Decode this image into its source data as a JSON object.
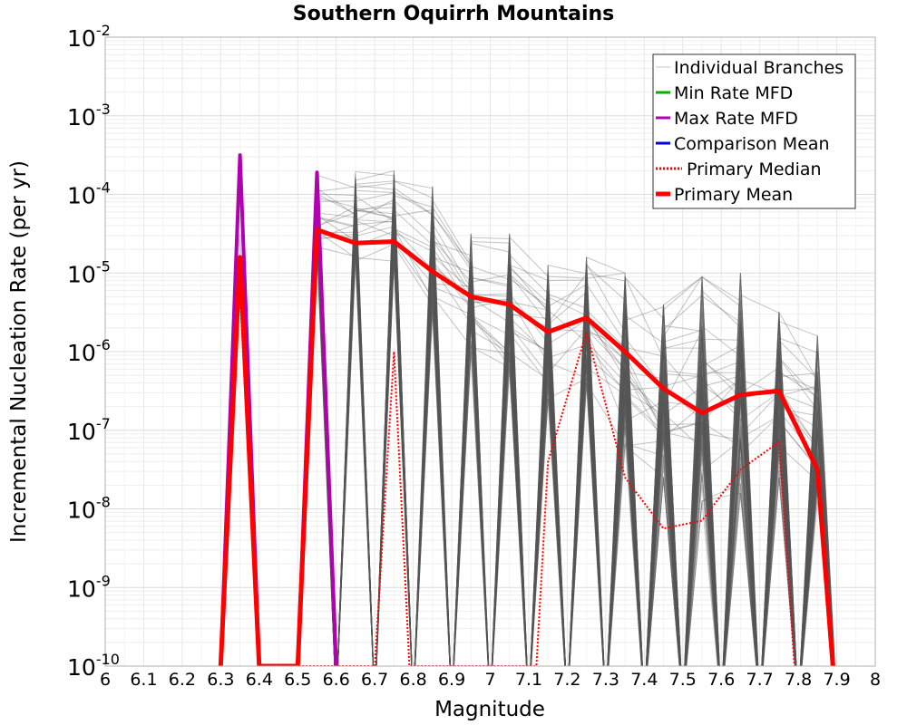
{
  "chart_data": {
    "type": "line",
    "title": "Southern Oquirrh Mountains",
    "xlabel": "Magnitude",
    "ylabel": "Incremental Nucleation Rate (per yr)",
    "xlim": [
      6,
      8
    ],
    "ylim_log10": [
      -10,
      -2
    ],
    "y_scale": "log",
    "grid": true,
    "legend_position": "top-right",
    "x_ticks": [
      "6",
      "6.1",
      "6.2",
      "6.3",
      "6.4",
      "6.5",
      "6.6",
      "6.7",
      "6.8",
      "6.9",
      "7",
      "7.1",
      "7.2",
      "7.3",
      "7.4",
      "7.5",
      "7.6",
      "7.7",
      "7.8",
      "7.9",
      "8"
    ],
    "y_ticks": [
      {
        "base": "10",
        "exp": "-2"
      },
      {
        "base": "10",
        "exp": "-3"
      },
      {
        "base": "10",
        "exp": "-4"
      },
      {
        "base": "10",
        "exp": "-5"
      },
      {
        "base": "10",
        "exp": "-6"
      },
      {
        "base": "10",
        "exp": "-7"
      },
      {
        "base": "10",
        "exp": "-8"
      },
      {
        "base": "10",
        "exp": "-9"
      },
      {
        "base": "10",
        "exp": "-10"
      }
    ],
    "legend": [
      {
        "label": "Individual Branches",
        "color": "#c8c8c8",
        "style": "thin"
      },
      {
        "label": "Min Rate MFD",
        "color": "#00b000",
        "style": "solid"
      },
      {
        "label": "Max Rate MFD",
        "color": "#b000b0",
        "style": "solid"
      },
      {
        "label": "Comparison Mean",
        "color": "#0000e0",
        "style": "solid"
      },
      {
        "label": "Primary Median",
        "color": "#ff0000",
        "style": "dotted"
      },
      {
        "label": "Primary Mean",
        "color": "#ff0000",
        "style": "thick"
      }
    ],
    "series": [
      {
        "name": "Max Rate MFD",
        "color": "#b000b0",
        "points": [
          [
            6.3,
            -10.0
          ],
          [
            6.35,
            -3.5
          ],
          [
            6.4,
            -10.0
          ],
          [
            6.5,
            -10.0
          ],
          [
            6.55,
            -3.72
          ],
          [
            6.6,
            -10.0
          ]
        ]
      },
      {
        "name": "Primary Median",
        "color": "#ff0000",
        "points": [
          [
            6.35,
            -5.25
          ],
          [
            6.4,
            -10.0
          ],
          [
            6.7,
            -10.0
          ],
          [
            6.75,
            -6.0
          ],
          [
            6.79,
            -10.0
          ],
          [
            7.12,
            -10.0
          ],
          [
            7.15,
            -7.4
          ],
          [
            7.25,
            -5.75
          ],
          [
            7.35,
            -7.6
          ],
          [
            7.45,
            -8.25
          ],
          [
            7.55,
            -8.15
          ],
          [
            7.65,
            -7.5
          ],
          [
            7.75,
            -7.15
          ],
          [
            7.79,
            -10.0
          ]
        ]
      },
      {
        "name": "Primary Mean",
        "color": "#ff0000",
        "points": [
          [
            6.3,
            -10.0
          ],
          [
            6.35,
            -4.8
          ],
          [
            6.4,
            -10.0
          ],
          [
            6.5,
            -10.0
          ],
          [
            6.55,
            -4.45
          ],
          [
            6.65,
            -4.62
          ],
          [
            6.75,
            -4.6
          ],
          [
            6.85,
            -4.98
          ],
          [
            6.95,
            -5.3
          ],
          [
            7.05,
            -5.4
          ],
          [
            7.15,
            -5.75
          ],
          [
            7.25,
            -5.57
          ],
          [
            7.35,
            -6.0
          ],
          [
            7.45,
            -6.47
          ],
          [
            7.55,
            -6.78
          ],
          [
            7.65,
            -6.55
          ],
          [
            7.75,
            -6.5
          ],
          [
            7.85,
            -7.5
          ],
          [
            7.89,
            -10.0
          ]
        ]
      }
    ],
    "branch_ensemble": {
      "name": "Individual Branches",
      "count": 110,
      "bins": [
        6.55,
        6.65,
        6.75,
        6.85,
        6.95,
        7.05,
        7.15,
        7.25,
        7.35,
        7.45,
        7.55,
        7.65,
        7.75,
        7.85
      ],
      "log10_low": [
        -4.7,
        -4.85,
        -4.85,
        -5.5,
        -6.0,
        -6.2,
        -6.6,
        -6.4,
        -7.2,
        -7.6,
        -7.9,
        -7.8,
        -7.6,
        -8.0
      ],
      "log10_high": [
        -3.7,
        -3.7,
        -3.7,
        -3.9,
        -4.5,
        -4.5,
        -4.9,
        -4.8,
        -5.0,
        -5.4,
        -5.05,
        -5.0,
        -5.5,
        -5.8
      ],
      "gap_bins": [
        6.6,
        6.7,
        6.8,
        6.9,
        7.0,
        7.1,
        7.2,
        7.3,
        7.4,
        7.5,
        7.6,
        7.7,
        7.8,
        7.9
      ]
    }
  }
}
